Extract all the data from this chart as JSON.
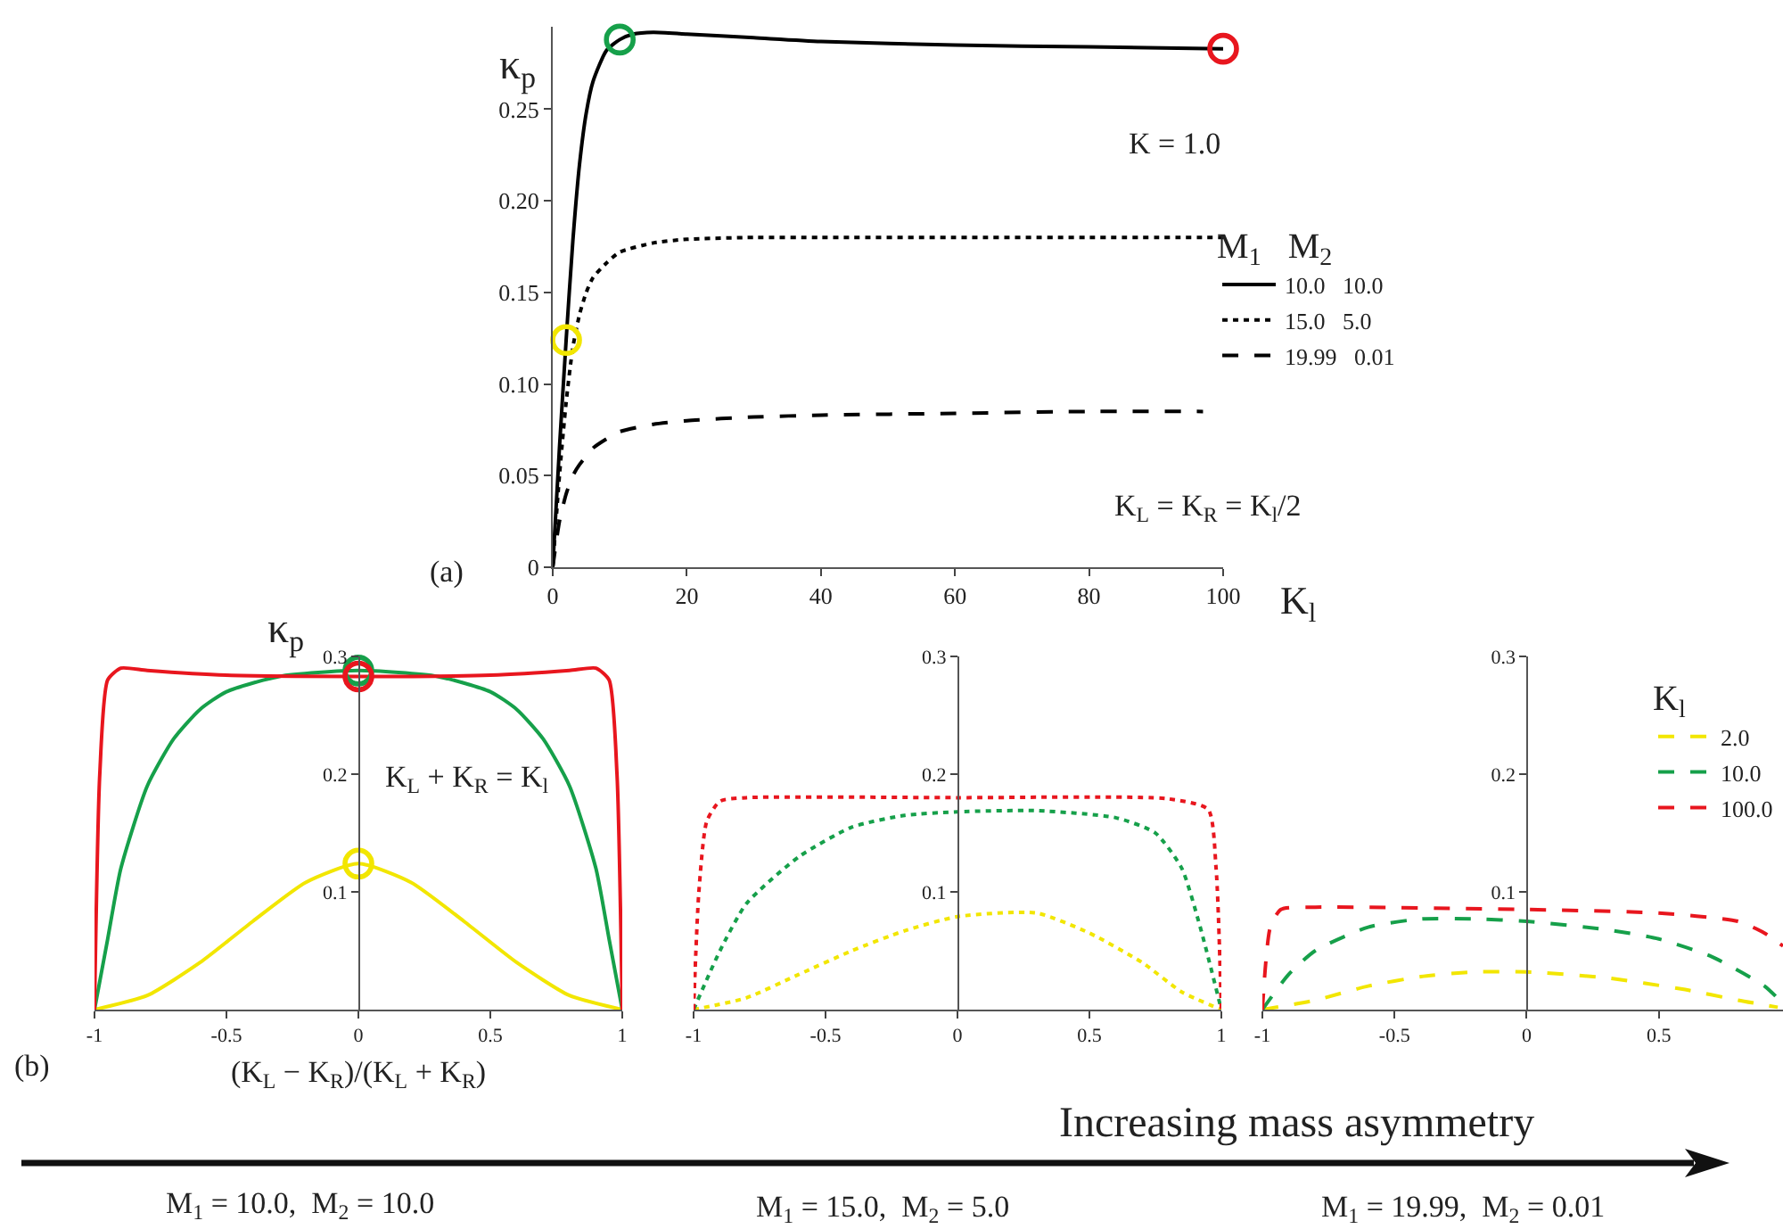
{
  "chart_data": [
    {
      "type": "line",
      "ylabel": "κ$_{p}$",
      "xlabel": "K$_{l}$",
      "legend_title": "M$_{1}$   M$_{2}$",
      "legend": "right",
      "grid": false,
      "xlim": [
        0,
        100
      ],
      "xticks": [
        0,
        20,
        40,
        60,
        80,
        100
      ],
      "ylim": [
        0,
        0.295
      ],
      "yticks": [
        0,
        0.05,
        {
          "value": 0.1,
          "label": "0.10"
        },
        0.15,
        {
          "value": 0.2,
          "label": "0.20"
        },
        0.25
      ],
      "annotations": [
        "K = 1.0",
        "K$_{L}$ = K$_{R}$ = K$_{l}$/2",
        "(a)"
      ],
      "series": [
        {
          "name": "10.0   10.0",
          "color": "#000000",
          "line_style": "solid",
          "x": [
            0,
            1,
            2,
            3,
            4,
            5,
            6,
            8,
            10,
            12,
            15,
            20,
            30,
            40,
            60,
            80,
            100
          ],
          "values": [
            0,
            0.065,
            0.124,
            0.178,
            0.22,
            0.248,
            0.265,
            0.282,
            0.288,
            0.291,
            0.292,
            0.291,
            0.289,
            0.287,
            0.285,
            0.284,
            0.283
          ]
        },
        {
          "name": "15.0   5.0",
          "color": "#000000",
          "line_style": "dotted",
          "x": [
            0,
            1,
            2,
            3,
            4,
            5,
            6,
            8,
            10,
            15,
            20,
            30,
            40,
            60,
            80,
            100
          ],
          "values": [
            0,
            0.05,
            0.09,
            0.12,
            0.138,
            0.15,
            0.158,
            0.166,
            0.172,
            0.177,
            0.179,
            0.18,
            0.18,
            0.18,
            0.18,
            0.18
          ]
        },
        {
          "name": "19.99   0.01",
          "color": "#000000",
          "line_style": "dashed",
          "x": [
            0,
            1,
            2,
            3,
            4,
            6,
            8,
            10,
            15,
            20,
            30,
            40,
            60,
            80,
            97
          ],
          "values": [
            0,
            0.025,
            0.04,
            0.05,
            0.056,
            0.065,
            0.07,
            0.074,
            0.078,
            0.08,
            0.082,
            0.083,
            0.084,
            0.085,
            0.085
          ]
        },
        {
          "type": "scatter",
          "marker": "circle",
          "color": "#f2e600",
          "x": [
            2
          ],
          "values": [
            0.124
          ]
        },
        {
          "type": "scatter",
          "marker": "circle",
          "color": "#16a04a",
          "x": [
            10
          ],
          "values": [
            0.288
          ]
        },
        {
          "type": "scatter",
          "marker": "circle",
          "color": "#e8161e",
          "x": [
            100
          ],
          "values": [
            0.283
          ]
        }
      ]
    },
    {
      "type": "line",
      "ylabel": "κ$_{p}$",
      "xlabel": "(K$_{L}$ − K$_{R}$)/(K$_{L}$ + K$_{R}$)",
      "grid": false,
      "line_style": "solid",
      "xlim": [
        -1,
        1
      ],
      "xticks": [
        -1,
        -0.5,
        0,
        0.5,
        1
      ],
      "ylim": [
        0,
        0.3
      ],
      "yticks": [
        0.1,
        0.2,
        0.3
      ],
      "annotations": [
        "K$_{L}$ + K$_{R}$ = K$_{l}$",
        "(b)",
        "M$_{1}$ = 10.0,  M$_{2}$ = 10.0"
      ],
      "series": [
        {
          "color": "#f2e600",
          "x": [
            -1,
            -0.8,
            -0.6,
            -0.4,
            -0.2,
            0,
            0.2,
            0.4,
            0.6,
            0.8,
            1
          ],
          "values": [
            0,
            0.012,
            0.04,
            0.075,
            0.108,
            0.124,
            0.108,
            0.075,
            0.04,
            0.012,
            0
          ]
        },
        {
          "color": "#16a04a",
          "x": [
            -1,
            -0.95,
            -0.9,
            -0.8,
            -0.7,
            -0.6,
            -0.5,
            -0.3,
            0,
            0.3,
            0.5,
            0.6,
            0.7,
            0.8,
            0.9,
            0.95,
            1
          ],
          "values": [
            0,
            0.06,
            0.12,
            0.19,
            0.23,
            0.255,
            0.27,
            0.283,
            0.288,
            0.283,
            0.27,
            0.255,
            0.23,
            0.19,
            0.12,
            0.06,
            0
          ]
        },
        {
          "color": "#e8161e",
          "x": [
            -1,
            -0.98,
            -0.95,
            -0.9,
            -0.8,
            -0.5,
            0,
            0.5,
            0.8,
            0.9,
            0.95,
            0.98,
            1
          ],
          "values": [
            0,
            0.2,
            0.28,
            0.29,
            0.288,
            0.284,
            0.283,
            0.284,
            0.288,
            0.29,
            0.28,
            0.2,
            0
          ]
        },
        {
          "type": "scatter",
          "marker": "circle",
          "color": "#f2e600",
          "x": [
            0
          ],
          "values": [
            0.124
          ]
        },
        {
          "type": "scatter",
          "marker": "circle",
          "color": "#16a04a",
          "x": [
            0
          ],
          "values": [
            0.288
          ]
        },
        {
          "type": "scatter",
          "marker": "circle",
          "color": "#e8161e",
          "x": [
            0
          ],
          "values": [
            0.283
          ]
        }
      ]
    },
    {
      "type": "line",
      "grid": false,
      "line_style": "dotted",
      "xlim": [
        -1,
        1
      ],
      "xticks": [
        -1,
        -0.5,
        0,
        0.5,
        1
      ],
      "ylim": [
        0,
        0.3
      ],
      "yticks": [
        0.1,
        0.2,
        0.3
      ],
      "annotations": [
        "M$_{1}$ = 15.0,  M$_{2}$ = 5.0"
      ],
      "series": [
        {
          "color": "#f2e600",
          "x": [
            -1,
            -0.8,
            -0.6,
            -0.4,
            -0.2,
            0,
            0.3,
            0.5,
            0.7,
            0.85,
            1
          ],
          "values": [
            0,
            0.01,
            0.03,
            0.05,
            0.067,
            0.079,
            0.082,
            0.065,
            0.04,
            0.015,
            0
          ]
        },
        {
          "color": "#16a04a",
          "x": [
            -1,
            -0.9,
            -0.8,
            -0.6,
            -0.4,
            -0.2,
            0,
            0.3,
            0.6,
            0.75,
            0.85,
            0.92,
            1
          ],
          "values": [
            0,
            0.05,
            0.09,
            0.13,
            0.155,
            0.165,
            0.168,
            0.169,
            0.163,
            0.15,
            0.12,
            0.07,
            0
          ]
        },
        {
          "color": "#e8161e",
          "x": [
            -1,
            -0.98,
            -0.95,
            -0.9,
            -0.8,
            0,
            0.8,
            0.95,
            0.98,
            1
          ],
          "values": [
            0,
            0.1,
            0.16,
            0.177,
            0.18,
            0.18,
            0.179,
            0.17,
            0.12,
            0
          ]
        }
      ]
    },
    {
      "type": "line",
      "grid": false,
      "line_style": "dashed",
      "legend": "top right",
      "legend_title": "K$_{l}$",
      "xlim": [
        -1,
        0.97
      ],
      "xticks": [
        -1,
        -0.5,
        0,
        0.5
      ],
      "ylim": [
        0,
        0.3
      ],
      "yticks": [
        0.1,
        0.2,
        0.3
      ],
      "annotations": [
        "Increasing mass asymmetry",
        "M$_{1}$ = 19.99,  M$_{2}$ = 0.01"
      ],
      "series": [
        {
          "name": "2.0",
          "color": "#f2e600",
          "x": [
            -1,
            -0.8,
            -0.6,
            -0.4,
            -0.2,
            0,
            0.3,
            0.6,
            0.8,
            0.95
          ],
          "values": [
            0,
            0.008,
            0.02,
            0.028,
            0.032,
            0.032,
            0.027,
            0.017,
            0.008,
            0.002
          ]
        },
        {
          "name": "10.0",
          "color": "#16a04a",
          "x": [
            -1,
            -0.9,
            -0.8,
            -0.6,
            -0.4,
            -0.2,
            0,
            0.3,
            0.5,
            0.7,
            0.9,
            0.97
          ],
          "values": [
            0,
            0.03,
            0.05,
            0.07,
            0.077,
            0.077,
            0.075,
            0.068,
            0.06,
            0.045,
            0.02,
            0.005
          ]
        },
        {
          "name": "100.0",
          "color": "#e8161e",
          "x": [
            -1,
            -0.97,
            -0.93,
            -0.8,
            0,
            0.5,
            0.8,
            0.9,
            0.97
          ],
          "values": [
            0,
            0.07,
            0.085,
            0.087,
            0.085,
            0.082,
            0.075,
            0.065,
            0.054
          ]
        }
      ]
    }
  ]
}
